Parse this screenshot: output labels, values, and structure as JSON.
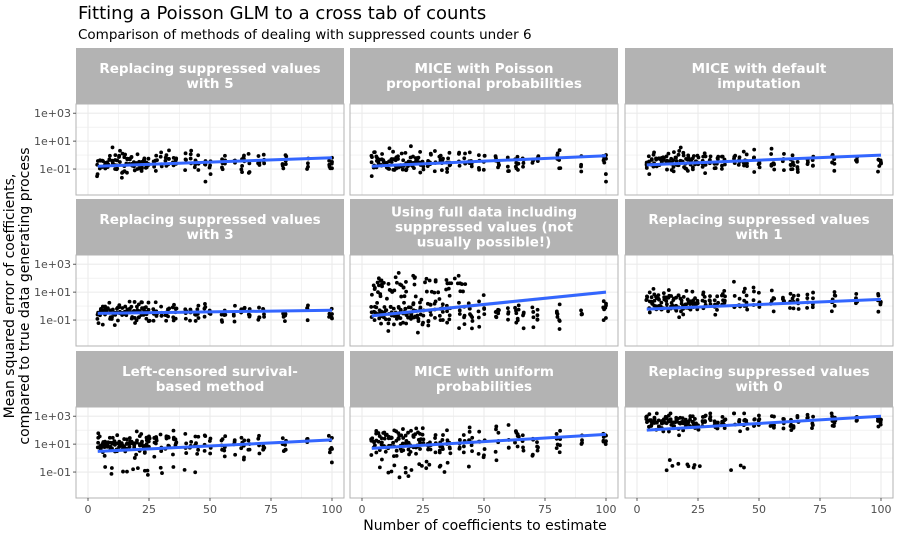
{
  "title": "Fitting a Poisson GLM to a cross tab of counts",
  "subtitle": "Comparison of methods of dealing with suppressed counts under 6",
  "chart_data": {
    "type": "scatter",
    "xlabel": "Number of coefficients to estimate",
    "ylabel": [
      "Mean squared error of coefficients,",
      "compared to true data generating process"
    ],
    "x_scale": "linear",
    "y_scale": "log10",
    "xlim": [
      0,
      100
    ],
    "ylim": [
      0.01,
      2000
    ],
    "x_ticks": [
      0,
      25,
      50,
      75,
      100
    ],
    "x_tick_labels": [
      "0",
      "25",
      "50",
      "75",
      "100"
    ],
    "y_ticks": [
      0.1,
      10,
      1000
    ],
    "y_tick_labels": [
      "1e-01",
      "1e+01",
      "1e+03"
    ],
    "x_values_sampled": [
      4,
      5,
      6,
      7,
      8,
      9,
      10,
      11,
      12,
      13,
      14,
      15,
      16,
      17,
      18,
      19,
      20,
      21,
      22,
      23,
      24,
      25,
      27,
      28,
      30,
      32,
      33,
      35,
      36,
      40,
      42,
      44,
      45,
      48,
      50,
      55,
      56,
      60,
      63,
      64,
      66,
      70,
      72,
      80,
      81,
      90,
      99,
      100
    ],
    "grid": true,
    "colors": {
      "points": "#000000",
      "trend": "#3366ff",
      "ribbon": "#999999",
      "strip": "#b3b3b3",
      "panel_border": "#b3b3b3",
      "grid": "#ebebeb"
    },
    "panels": [
      {
        "label": [
          "Replacing suppressed values",
          "with 5"
        ],
        "trend": {
          "x": [
            4,
            100
          ],
          "y": [
            0.16,
            0.65
          ],
          "se": 0.02
        },
        "bands": [
          {
            "y": 0.3,
            "spread": 0.6
          }
        ]
      },
      {
        "label": [
          "MICE with Poisson",
          "proportional probabilities"
        ],
        "trend": {
          "x": [
            4,
            100
          ],
          "y": [
            0.16,
            0.9
          ],
          "se": 0.03
        },
        "bands": [
          {
            "y": 0.35,
            "spread": 0.65
          }
        ]
      },
      {
        "label": [
          "MICE with default",
          "imputation"
        ],
        "trend": {
          "x": [
            4,
            100
          ],
          "y": [
            0.2,
            1.0
          ],
          "se": 0.03
        },
        "bands": [
          {
            "y": 0.35,
            "spread": 0.6
          }
        ]
      },
      {
        "label": [
          "Replacing suppressed values",
          "with 3"
        ],
        "trend": {
          "x": [
            4,
            100
          ],
          "y": [
            0.3,
            0.5
          ],
          "se": 0.02
        },
        "bands": [
          {
            "y": 0.35,
            "spread": 0.6
          }
        ]
      },
      {
        "label": [
          "Using full data including",
          "suppressed values (not",
          "usually possible!)"
        ],
        "trend": {
          "x": [
            4,
            100
          ],
          "y": [
            0.2,
            10
          ],
          "se": 0.12
        },
        "bands": [
          {
            "y": 0.3,
            "spread": 0.7
          },
          {
            "y": 30,
            "spread": 0.8,
            "frac": 0.3
          }
        ]
      },
      {
        "label": [
          "Replacing suppressed values",
          "with 1"
        ],
        "trend": {
          "x": [
            4,
            100
          ],
          "y": [
            0.6,
            3
          ],
          "se": 0.03
        },
        "bands": [
          {
            "y": 2,
            "spread": 0.7
          }
        ]
      },
      {
        "label": [
          "Left-censored survival-",
          "based method"
        ],
        "trend": {
          "x": [
            4,
            100
          ],
          "y": [
            3,
            20
          ],
          "se": 0.04
        },
        "bands": [
          {
            "y": 10,
            "spread": 0.7
          },
          {
            "y": 0.15,
            "spread": 0.4,
            "frac": 0.08
          }
        ]
      },
      {
        "label": [
          "MICE with uniform",
          "probabilities"
        ],
        "trend": {
          "x": [
            4,
            100
          ],
          "y": [
            5,
            50
          ],
          "se": 0.05
        },
        "bands": [
          {
            "y": 15,
            "spread": 0.8
          },
          {
            "y": 0.2,
            "spread": 0.5,
            "frac": 0.1
          }
        ]
      },
      {
        "label": [
          "Replacing suppressed values",
          "with 0"
        ],
        "trend": {
          "x": [
            4,
            100
          ],
          "y": [
            100,
            1000
          ],
          "se": 0.05
        },
        "bands": [
          {
            "y": 400,
            "spread": 0.5
          },
          {
            "y": 0.2,
            "spread": 0.4,
            "frac": 0.06
          }
        ]
      }
    ]
  }
}
